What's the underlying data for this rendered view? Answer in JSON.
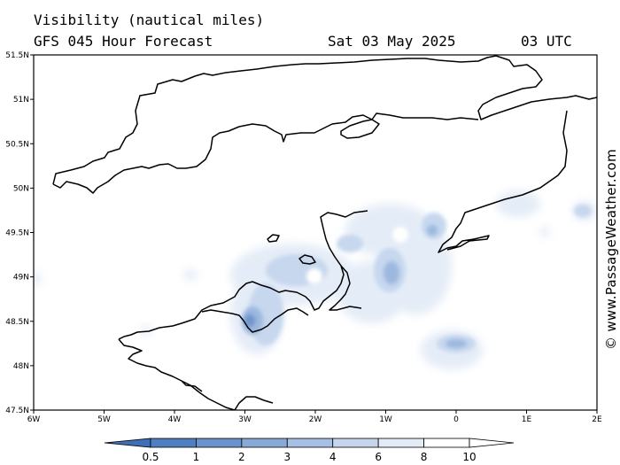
{
  "header": {
    "title": "Visibility (nautical miles)",
    "model": "GFS 045 Hour Forecast",
    "date": "Sat 03 May 2025",
    "time": "03 UTC"
  },
  "map": {
    "lat_labels": [
      "51.5N",
      "51N",
      "50.5N",
      "50N",
      "49.5N",
      "49N",
      "48.5N",
      "48N",
      "47.5N"
    ],
    "lon_labels": [
      "6W",
      "5W",
      "4W",
      "3W",
      "2W",
      "1W",
      "0",
      "1E",
      "2E"
    ]
  },
  "legend": {
    "labels": [
      "0.5",
      "1",
      "2",
      "3",
      "4",
      "6",
      "8",
      "10"
    ],
    "colors": [
      "#3f6fb4",
      "#4f7fc0",
      "#6b93cb",
      "#88a8d6",
      "#a6bfe2",
      "#c4d5ec",
      "#e3ebf6",
      "#ffffff",
      "#ffffff"
    ]
  },
  "credit": "© www.PassageWeather.com"
}
